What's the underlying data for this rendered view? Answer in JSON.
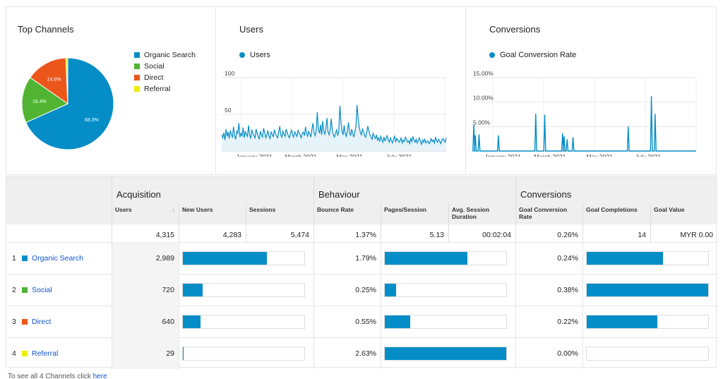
{
  "top_channels": {
    "title": "Top Channels",
    "chart_data": {
      "type": "pie",
      "labels": [
        "Organic Search",
        "Social",
        "Direct",
        "Referral"
      ],
      "values": [
        68.3,
        16.4,
        14.6,
        0.7
      ],
      "value_labels": [
        "68.3%",
        "16.4%",
        "14.6%",
        ""
      ],
      "colors": [
        "#058dc7",
        "#50b432",
        "#ed561b",
        "#edef00"
      ]
    }
  },
  "users_chart": {
    "title": "Users",
    "legend": "Users",
    "chart_data": {
      "type": "area",
      "y_ticks": [
        "100",
        "50"
      ],
      "ylim": [
        0,
        100
      ],
      "x_ticks": [
        "January 2021",
        "March 2021",
        "May 2021",
        "July 2021"
      ],
      "series": [
        {
          "name": "Users",
          "color": "#058dc7",
          "values": [
            22,
            18,
            25,
            15,
            30,
            20,
            26,
            17,
            28,
            22,
            19,
            33,
            21,
            16,
            27,
            24,
            38,
            19,
            24,
            21,
            32,
            18,
            27,
            23,
            20,
            35,
            22,
            17,
            29,
            25,
            21,
            18,
            30,
            24,
            20,
            16,
            27,
            22,
            19,
            31,
            25,
            18,
            22,
            28,
            20,
            17,
            26,
            23,
            19,
            29,
            24,
            21,
            18,
            25,
            34,
            22,
            19,
            27,
            23,
            20,
            30,
            25,
            21,
            18,
            24,
            29,
            22,
            19,
            26,
            23,
            20,
            28,
            25,
            22,
            18,
            24,
            26,
            21,
            33,
            24,
            20,
            27,
            23,
            19,
            30,
            38,
            25,
            21,
            28,
            53,
            30,
            24,
            36,
            22,
            41,
            27,
            23,
            32,
            45,
            26,
            22,
            30,
            44,
            27,
            22,
            19,
            25,
            29,
            21,
            27,
            62,
            40,
            28,
            22,
            35,
            24,
            20,
            27,
            39,
            25,
            21,
            30,
            24,
            19,
            26,
            35,
            63,
            45,
            32,
            26,
            22,
            30,
            27,
            21,
            19,
            25,
            34,
            28,
            22,
            19,
            16,
            24,
            20,
            17,
            22,
            15,
            18,
            13,
            20,
            16,
            12,
            19,
            14,
            17,
            21,
            15,
            12,
            18,
            14,
            11,
            16,
            20,
            13,
            17,
            15,
            12,
            14,
            18,
            11,
            15,
            13,
            19,
            16,
            12,
            14,
            10,
            17,
            13,
            20,
            15,
            12,
            16,
            11,
            14,
            18,
            13,
            9,
            15,
            12,
            16,
            11,
            13,
            14,
            10,
            12,
            17,
            13,
            15,
            11,
            19,
            14,
            12,
            16,
            13,
            10,
            15,
            17,
            14,
            12,
            18
          ]
        }
      ]
    }
  },
  "conversions_chart": {
    "title": "Conversions",
    "legend": "Goal Conversion Rate",
    "chart_data": {
      "type": "line",
      "y_ticks": [
        "15.00%",
        "10.00%",
        "5.00%"
      ],
      "ylim": [
        0,
        15
      ],
      "x_ticks": [
        "January 2021",
        "March 2021",
        "May 2021",
        "July 2021"
      ],
      "series": [
        {
          "name": "Goal Conversion Rate",
          "color": "#058dc7",
          "spikes": [
            [
              1,
              5.4
            ],
            [
              3,
              3.2
            ],
            [
              8,
              3.4
            ],
            [
              34,
              3.2
            ],
            [
              84,
              7.6
            ],
            [
              96,
              7.4
            ],
            [
              120,
              3.6
            ],
            [
              122,
              3.0
            ],
            [
              126,
              2.4
            ],
            [
              134,
              2.8
            ],
            [
              208,
              5.0
            ],
            [
              239,
              11.2
            ],
            [
              244,
              7.6
            ]
          ],
          "length": 300
        }
      ]
    }
  },
  "table": {
    "groups": [
      "Acquisition",
      "Behaviour",
      "Conversions"
    ],
    "columns": [
      "Users",
      "New Users",
      "Sessions",
      "Bounce Rate",
      "Pages/Session",
      "Avg. Session Duration",
      "Goal Conversion Rate",
      "Goal Completions",
      "Goal Value"
    ],
    "sort_icon": "↓",
    "totals": [
      "4,315",
      "4,283",
      "5,474",
      "1.37%",
      "5.13",
      "00:02:04",
      "0.26%",
      "14",
      "MYR 0.00"
    ],
    "rows": [
      {
        "index": "1",
        "channel": "Organic Search",
        "color": "#058dc7",
        "users": "2,989",
        "users_frac": 0.69,
        "bounce": "1.79%",
        "bounce_frac": 0.68,
        "conv": "0.24%",
        "conv_frac": 0.63
      },
      {
        "index": "2",
        "channel": "Social",
        "color": "#50b432",
        "users": "720",
        "users_frac": 0.165,
        "bounce": "0.25%",
        "bounce_frac": 0.095,
        "conv": "0.38%",
        "conv_frac": 1.0
      },
      {
        "index": "3",
        "channel": "Direct",
        "color": "#ed561b",
        "users": "640",
        "users_frac": 0.148,
        "bounce": "0.55%",
        "bounce_frac": 0.21,
        "conv": "0.22%",
        "conv_frac": 0.58
      },
      {
        "index": "4",
        "channel": "Referral",
        "color": "#edef00",
        "users": "29",
        "users_frac": 0.007,
        "bounce": "2.63%",
        "bounce_frac": 1.0,
        "conv": "0.00%",
        "conv_frac": 0.0
      }
    ]
  },
  "footer": {
    "text": "To see all 4 Channels click ",
    "link": "here"
  }
}
